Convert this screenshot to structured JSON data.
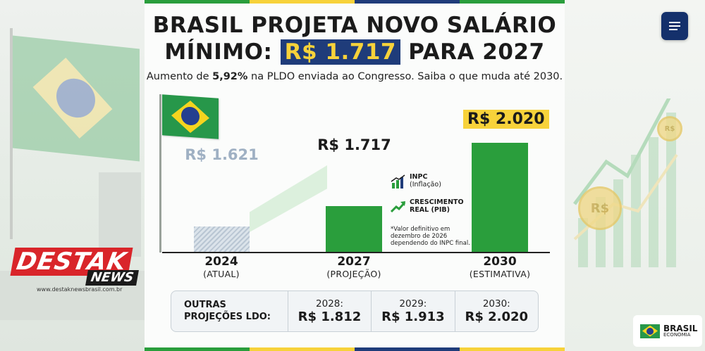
{
  "header": {
    "title_line1": "BRASIL PROJETA NOVO SALÁRIO",
    "title_line2_pre": "MÍNIMO:",
    "title_line2_highlight": "R$ 1.717",
    "title_line2_post": "PARA 2027",
    "subtitle_pre": "Aumento de",
    "subtitle_bold": "5,92%",
    "subtitle_post": "na PLDO enviada ao Congresso. Saiba o que muda até 2030."
  },
  "chart_data": {
    "type": "bar",
    "categories": [
      "2024",
      "2027",
      "2030"
    ],
    "category_subtitles": [
      "(ATUAL)",
      "(PROJEÇÃO)",
      "(ESTIMATIVA)"
    ],
    "values": [
      1621,
      1717,
      2020
    ],
    "value_labels": [
      "R$ 1.621",
      "R$ 1.717",
      "R$ 2.020"
    ],
    "title": "",
    "xlabel": "",
    "ylabel": "",
    "ylim": [
      1500,
      2080
    ],
    "colors": [
      "#b9c6d3",
      "#2a9e3c",
      "#2a9e3c"
    ]
  },
  "legend": {
    "items": [
      {
        "label": "INPC",
        "sub": "(Inflação)",
        "icon": "bar-chart-icon"
      },
      {
        "label": "CRESCIMENTO",
        "sub": "REAL (PIB)",
        "icon": "trend-up-icon"
      }
    ],
    "note": "*Valor definitivo em dezembro de 2026 dependendo do INPC final."
  },
  "projections": {
    "heading_line1": "OUTRAS",
    "heading_line2": "PROJEÇÕES LDO:",
    "items": [
      {
        "year": "2028:",
        "value": "R$ 1.812"
      },
      {
        "year": "2029:",
        "value": "R$ 1.913"
      },
      {
        "year": "2030:",
        "value": "R$ 2.020"
      }
    ]
  },
  "brand": {
    "logo_top": "DESTAK",
    "logo_bottom": "NEWS",
    "url": "www.destaknewsbrasil.com.br",
    "menu_icon": "menu-icon",
    "footer_logo_title": "BRASIL",
    "footer_logo_sub": "ECONOMIA"
  },
  "colors": {
    "green": "#2a9e3c",
    "yellow": "#f7d23a",
    "navy": "#1f3c7a"
  }
}
